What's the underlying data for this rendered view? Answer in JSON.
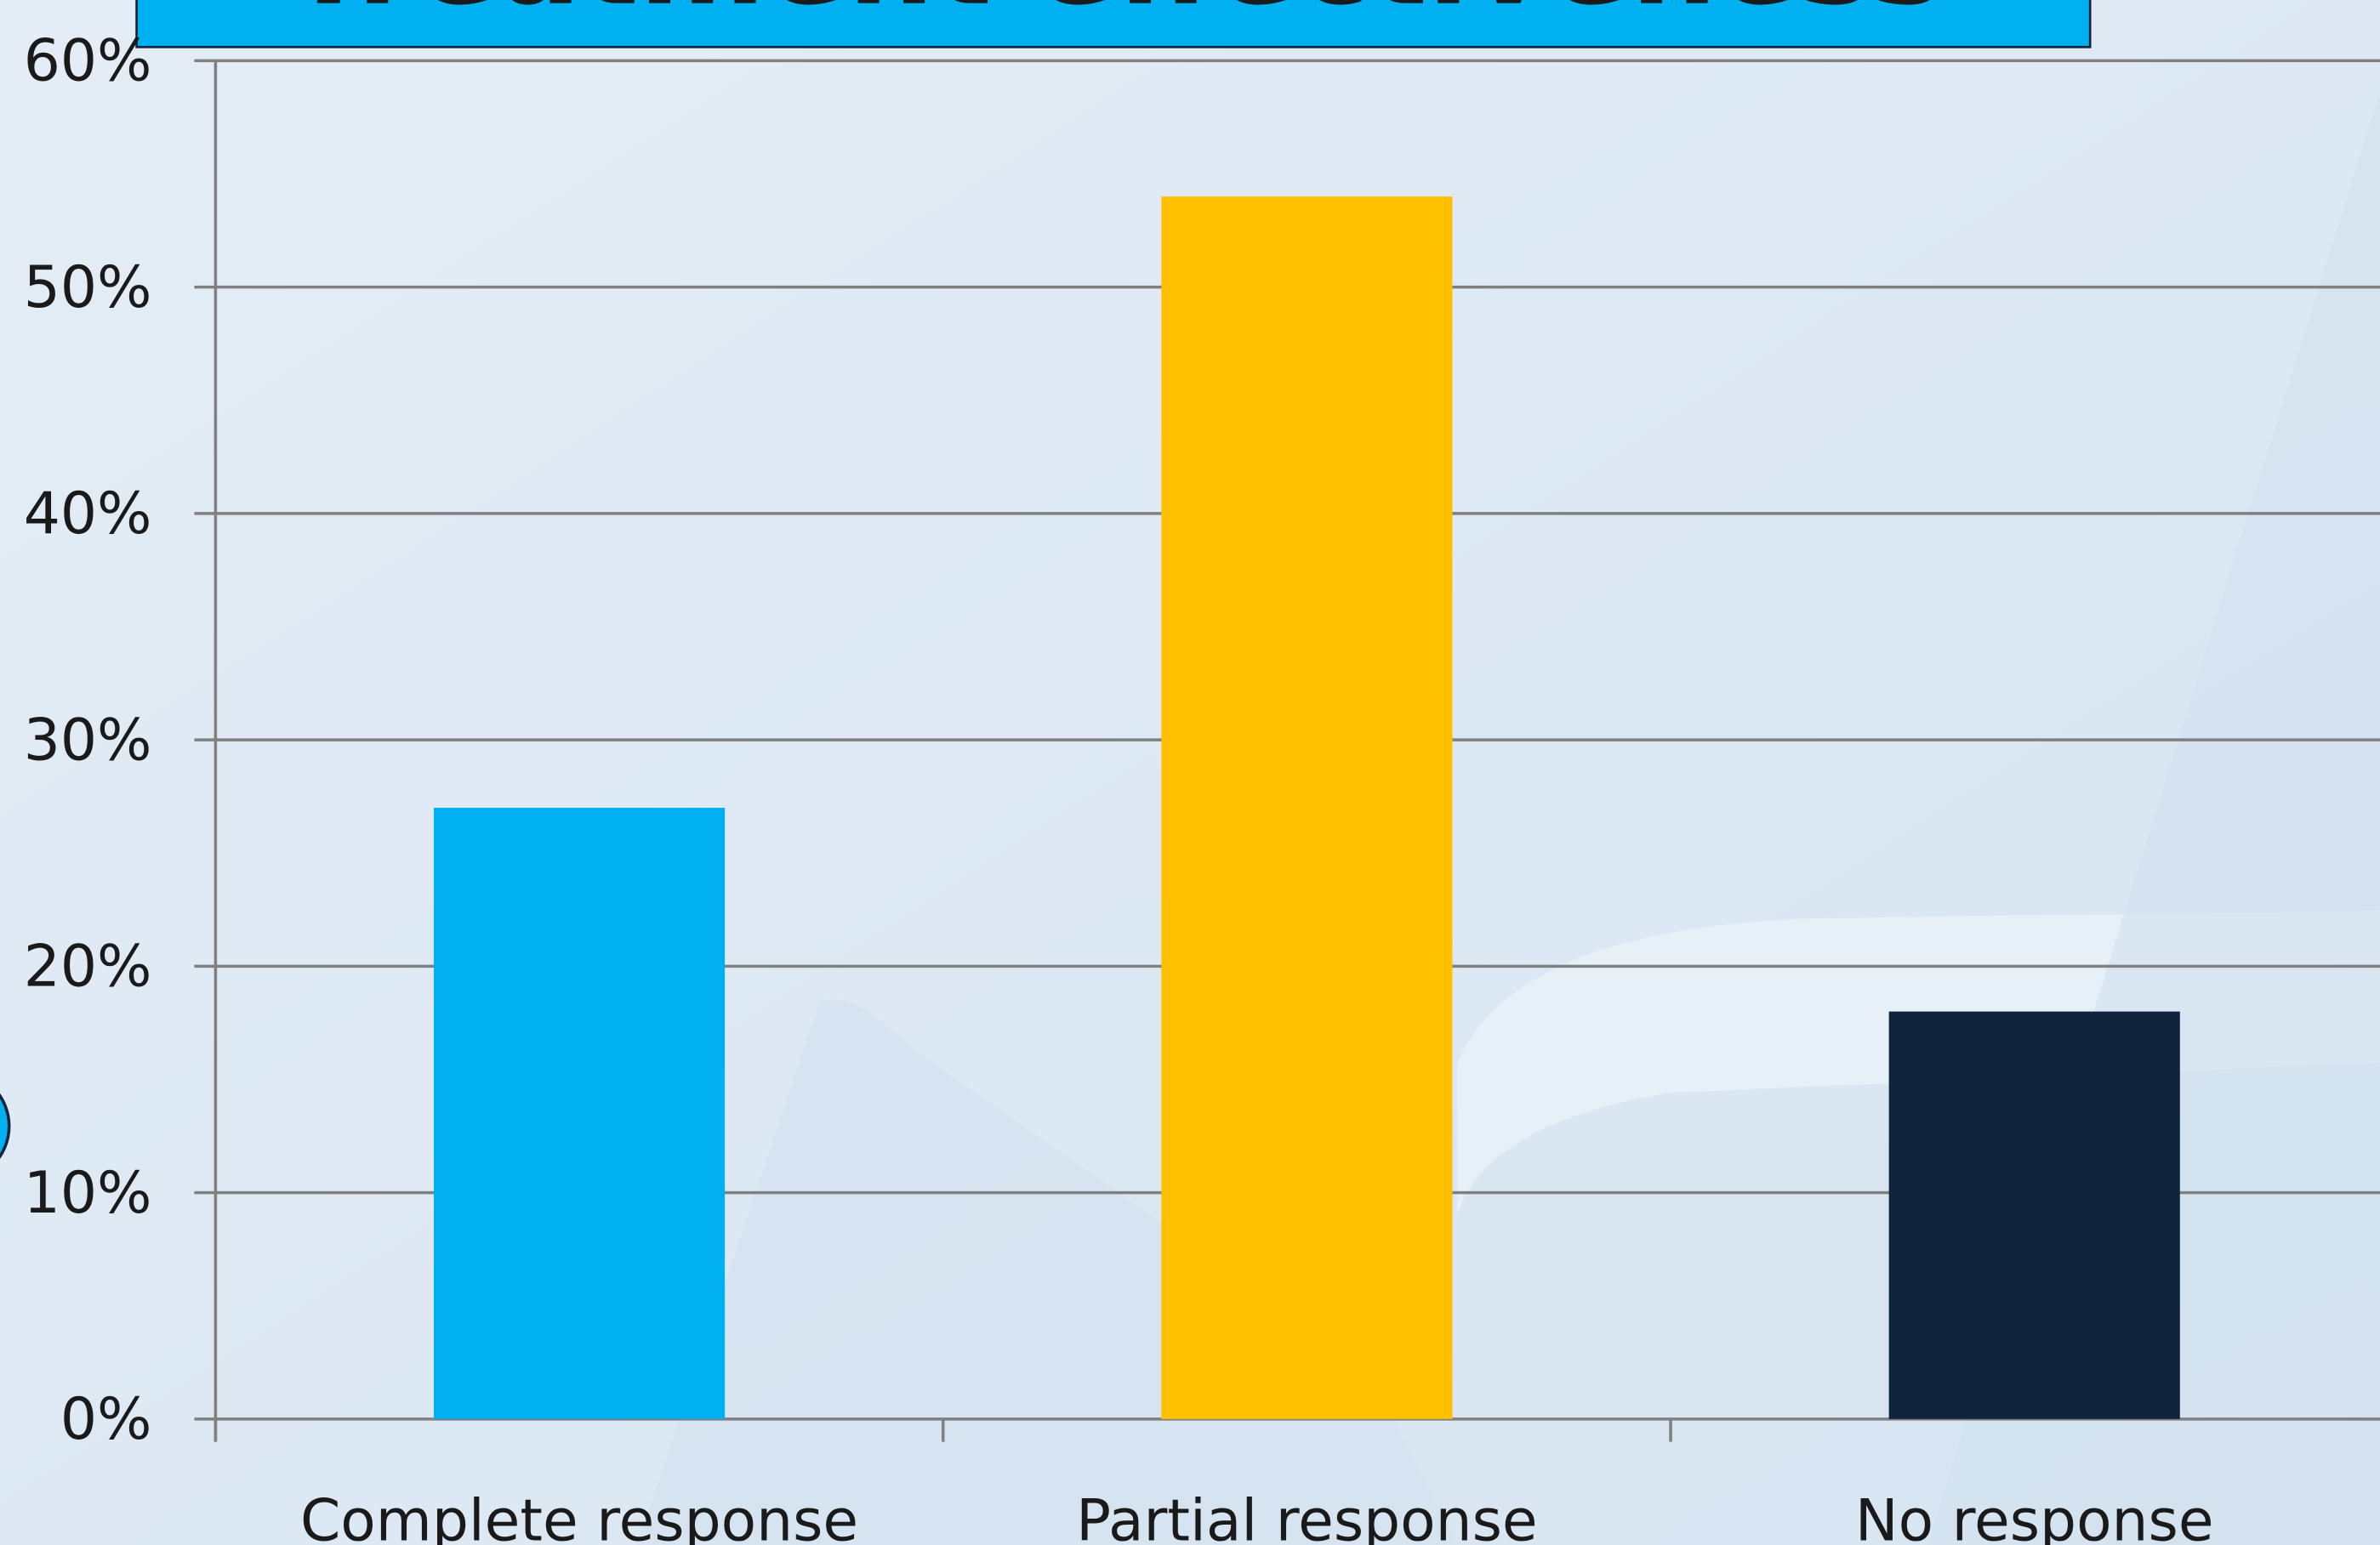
{
  "chart_data": {
    "type": "bar",
    "title": "Treatment effectiveness",
    "categories": [
      "Complete response",
      "Partial response",
      "No response"
    ],
    "values": [
      27,
      54,
      18
    ],
    "colors": [
      "#00b0f0",
      "#ffc000",
      "#10243e"
    ],
    "ylim": [
      0,
      60
    ],
    "yticks": [
      {
        "value": 0,
        "label": "0%"
      },
      {
        "value": 10,
        "label": "10%"
      },
      {
        "value": 20,
        "label": "20%"
      },
      {
        "value": 30,
        "label": "30%"
      },
      {
        "value": 40,
        "label": "40%"
      },
      {
        "value": 50,
        "label": "50%"
      },
      {
        "value": 60,
        "label": "60%"
      }
    ],
    "grid": true
  }
}
